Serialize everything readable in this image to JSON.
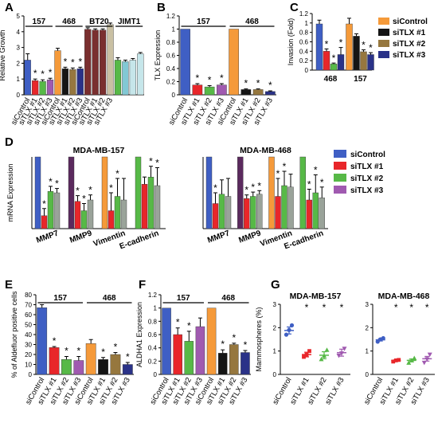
{
  "colors": {
    "siControl_blue": "#3f5fc4",
    "siControl_orange": "#f59a3a",
    "siTLX1_red": "#e8262a",
    "siTLX2_green": "#57b947",
    "siTLX3_purple": "#a05ab0",
    "siTLX1_black": "#151515",
    "siTLX2_brown": "#96773e",
    "siTLX3_navy": "#2a3288",
    "bt20_control": "#7a2f2f",
    "bt20_tlx": "#c9c0a3",
    "jimt1_control": "#82c8d4",
    "jimt1_tlx": "#c6e6ea"
  },
  "chart_data": [
    {
      "panel": "A",
      "type": "bar",
      "ylabel": "Relative Growth",
      "ylim": [
        0,
        5
      ],
      "yticks": [
        0,
        1,
        2,
        3,
        4,
        5
      ],
      "groups": [
        "157",
        "468",
        "BT20",
        "JIMT1"
      ],
      "categories": [
        "siControl",
        "siTLX #1",
        "siTLX #2",
        "siTLX #3",
        "siControl",
        "siTLX #1",
        "siTLX #2",
        "siTLX #3",
        "siControl",
        "siTLX #1",
        "siTLX #2",
        "siTLX #3",
        "siControl",
        "siTLX #1",
        "siTLX #2",
        "siTLX #3"
      ],
      "values": [
        2.2,
        0.9,
        0.85,
        0.95,
        2.8,
        1.65,
        1.6,
        1.65,
        4.15,
        4.1,
        4.1,
        4.45,
        2.2,
        2.1,
        2.2,
        2.6
      ],
      "errors": [
        0.4,
        0.1,
        0.1,
        0.1,
        0.15,
        0.1,
        0.1,
        0.1,
        0.1,
        0.08,
        0.08,
        0.1,
        0.15,
        0.1,
        0.1,
        0.08
      ],
      "significant": [
        false,
        true,
        true,
        true,
        false,
        true,
        true,
        true,
        false,
        false,
        false,
        false,
        false,
        false,
        false,
        false
      ]
    },
    {
      "panel": "B",
      "type": "bar",
      "ylabel": "TLX Expression",
      "ylim": [
        0,
        1.2
      ],
      "yticks": [
        0,
        0.2,
        0.4,
        0.6,
        0.8,
        1,
        1.2
      ],
      "groups": [
        "157",
        "468"
      ],
      "categories": [
        "siControl",
        "siTLX #1",
        "siTLX #2",
        "siTLX #3",
        "siControl",
        "siTLX #1",
        "siTLX #2",
        "siTLX #3"
      ],
      "values": [
        1.0,
        0.15,
        0.12,
        0.15,
        1.0,
        0.08,
        0.08,
        0.05
      ],
      "errors": [
        0,
        0.02,
        0.02,
        0.02,
        0,
        0.01,
        0.01,
        0.01
      ],
      "significant": [
        false,
        true,
        true,
        true,
        false,
        true,
        true,
        true
      ]
    },
    {
      "panel": "C",
      "type": "bar",
      "ylabel": "Invasion (Fold)",
      "ylim": [
        0,
        1.2
      ],
      "yticks": [
        0,
        0.2,
        0.4,
        0.6,
        0.8,
        1,
        1.2
      ],
      "categories": [
        "468",
        "157"
      ],
      "series": [
        {
          "name": "siControl",
          "values": [
            0.98,
            0.98
          ],
          "errors": [
            0.08,
            0.12
          ]
        },
        {
          "name": "siTLX #1",
          "values": [
            0.4,
            0.72
          ],
          "errors": [
            0.05,
            0.05
          ]
        },
        {
          "name": "siTLX #2",
          "values": [
            0.13,
            0.39
          ],
          "errors": [
            0.02,
            0.04
          ]
        },
        {
          "name": "siTLX #3",
          "values": [
            0.33,
            0.33
          ],
          "errors": [
            0.15,
            0.04
          ]
        }
      ],
      "significant": [
        [
          false,
          true,
          true,
          true
        ],
        [
          false,
          false,
          true,
          true
        ]
      ],
      "legend": "right"
    },
    {
      "panel": "D",
      "type": "bar",
      "title": "MDA-MB-157",
      "ylabel": "mRNA Expression",
      "ylim": [
        0,
        1
      ],
      "categories": [
        "MMP7",
        "MMP9",
        "Vimentin",
        "E-cadherin"
      ],
      "series": [
        {
          "name": "siControl",
          "values": [
            1.0,
            1.0,
            1.0,
            1.0
          ],
          "errors": [
            0,
            0,
            0,
            0
          ]
        },
        {
          "name": "siTLX #1",
          "values": [
            0.18,
            0.38,
            0.25,
            0.62
          ],
          "errors": [
            0.1,
            0.08,
            0.25,
            0.1
          ]
        },
        {
          "name": "siTLX #2",
          "values": [
            0.52,
            0.25,
            0.45,
            0.72
          ],
          "errors": [
            0.07,
            0.1,
            0.25,
            0.15
          ]
        },
        {
          "name": "siTLX #3",
          "values": [
            0.5,
            0.4,
            0.4,
            0.6
          ],
          "errors": [
            0.06,
            0.07,
            0.3,
            0.25
          ]
        }
      ],
      "significant": [
        [
          false,
          true,
          true,
          true
        ],
        [
          false,
          true,
          true,
          true
        ],
        [
          false,
          true,
          true,
          false
        ],
        [
          false,
          false,
          true,
          true
        ]
      ]
    },
    {
      "panel": "D",
      "type": "bar",
      "title": "MDA-MB-468",
      "ylabel": "",
      "ylim": [
        0,
        1
      ],
      "categories": [
        "MMP7",
        "MMP9",
        "Vimentin",
        "E-cadherin"
      ],
      "series": [
        {
          "name": "siControl",
          "values": [
            1.0,
            1.0,
            1.0,
            1.0
          ],
          "errors": [
            0,
            0,
            0,
            0
          ]
        },
        {
          "name": "siTLX #1",
          "values": [
            0.35,
            0.42,
            0.45,
            0.4
          ],
          "errors": [
            0.15,
            0.05,
            0.25,
            0.15
          ]
        },
        {
          "name": "siTLX #2",
          "values": [
            0.48,
            0.45,
            0.6,
            0.5
          ],
          "errors": [
            0.2,
            0.06,
            0.2,
            0.25
          ]
        },
        {
          "name": "siTLX #3",
          "values": [
            0.45,
            0.48,
            0.58,
            0.43
          ],
          "errors": [
            0.25,
            0.05,
            0.18,
            0.15
          ]
        }
      ],
      "significant": [
        [
          false,
          true,
          false,
          false
        ],
        [
          false,
          true,
          true,
          true
        ],
        [
          false,
          true,
          true,
          false
        ],
        [
          false,
          true,
          true,
          true
        ]
      ],
      "legend": "right"
    },
    {
      "panel": "E",
      "type": "bar",
      "ylabel": "% of Aldefluor positive cells",
      "ylim": [
        0,
        80
      ],
      "yticks": [
        0,
        10,
        20,
        30,
        40,
        50,
        60,
        70,
        80
      ],
      "groups": [
        "157",
        "468"
      ],
      "categories": [
        "siControl",
        "siTLX #1",
        "siTLX #2",
        "siTLX #3",
        "siControl",
        "siTLX #1",
        "siTLX #2",
        "siTLX #3"
      ],
      "values": [
        67,
        27,
        15,
        14,
        31,
        15,
        20,
        10
      ],
      "errors": [
        3,
        1,
        3,
        4,
        4,
        2,
        2,
        2
      ],
      "significant": [
        false,
        true,
        true,
        true,
        false,
        true,
        true,
        true
      ]
    },
    {
      "panel": "F",
      "type": "bar",
      "ylabel": "ALDHA1 Expression",
      "ylim": [
        0,
        1.2
      ],
      "yticks": [
        0,
        0.2,
        0.4,
        0.6,
        0.8,
        1,
        1.2
      ],
      "groups": [
        "157",
        "468"
      ],
      "categories": [
        "siControl",
        "siTLX #1",
        "siTLX #2",
        "siTLX #3",
        "siControl",
        "siTLX #1",
        "siTLX #2",
        "siTLX #3"
      ],
      "values": [
        1.0,
        0.6,
        0.5,
        0.72,
        1.0,
        0.32,
        0.45,
        0.33
      ],
      "errors": [
        0,
        0.1,
        0.15,
        0.13,
        0,
        0.05,
        0.02,
        0.03
      ],
      "significant": [
        false,
        true,
        true,
        false,
        false,
        true,
        true,
        true
      ]
    },
    {
      "panel": "G",
      "type": "scatter",
      "title": "MDA-MB-157",
      "ylabel": "Mammospheres (%)",
      "ylim": [
        0,
        3
      ],
      "yticks": [
        0,
        1,
        2,
        3
      ],
      "categories": [
        "siControl",
        "siTLX #1",
        "siTLX #2",
        "siTLX #3"
      ],
      "points": [
        [
          1.7,
          1.9,
          2.1
        ],
        [
          0.75,
          0.85,
          1.0
        ],
        [
          0.65,
          0.8,
          1.05
        ],
        [
          0.8,
          0.9,
          1.1
        ]
      ],
      "means": [
        1.88,
        0.85,
        0.82,
        0.93
      ],
      "errors": [
        0.15,
        0.1,
        0.15,
        0.15
      ],
      "significant": [
        false,
        true,
        true,
        true
      ]
    },
    {
      "panel": "G",
      "type": "scatter",
      "title": "MDA-MB-468",
      "ylabel": "",
      "ylim": [
        0,
        3
      ],
      "yticks": [
        0,
        1,
        2,
        3
      ],
      "categories": [
        "siControl",
        "siTLX #1",
        "siTLX #2",
        "siTLX #3"
      ],
      "points": [
        [
          1.4,
          1.5,
          1.55
        ],
        [
          0.55,
          0.6,
          0.62
        ],
        [
          0.5,
          0.6,
          0.7
        ],
        [
          0.5,
          0.65,
          0.85
        ]
      ],
      "means": [
        1.48,
        0.59,
        0.6,
        0.67
      ],
      "errors": [
        0.05,
        0.03,
        0.06,
        0.1
      ],
      "significant": [
        false,
        true,
        true,
        true
      ]
    }
  ]
}
